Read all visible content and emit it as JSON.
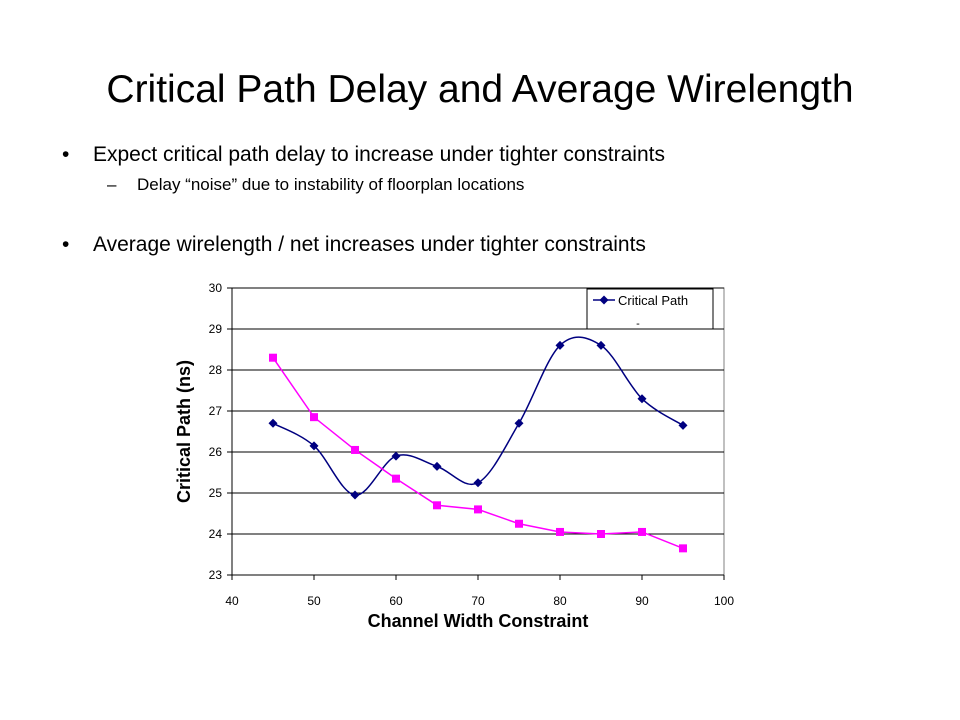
{
  "slide": {
    "title": "Critical Path Delay and Average Wirelength",
    "bullets": [
      {
        "text": "Expect critical path delay to increase under tighter constraints",
        "sub": "Delay “noise” due to instability of floorplan locations"
      },
      {
        "text": "Average wirelength / net increases under tighter constraints"
      }
    ],
    "bullet_symbol": "•",
    "dash_symbol": "–"
  },
  "chart_data": {
    "type": "line",
    "xlabel": "Channel Width Constraint",
    "ylabel": "Critical Path (ns)",
    "xlim": [
      40,
      100
    ],
    "ylim": [
      23,
      30
    ],
    "x_ticks": [
      40,
      50,
      60,
      70,
      80,
      90,
      100
    ],
    "y_ticks": [
      23,
      24,
      25,
      26,
      27,
      28,
      29,
      30
    ],
    "grid": "horizontal",
    "legend": {
      "placement": "top-right",
      "extra_mark": "-"
    },
    "x": [
      45,
      50,
      55,
      60,
      65,
      70,
      75,
      80,
      85,
      90,
      95
    ],
    "series": [
      {
        "name": "Critical Path",
        "color": "#000080",
        "marker": "diamond",
        "smooth": true,
        "in_legend": true,
        "values": [
          26.7,
          26.15,
          24.95,
          25.9,
          25.65,
          25.25,
          26.7,
          28.6,
          28.6,
          27.3,
          26.65
        ]
      },
      {
        "color": "#ff00ff",
        "marker": "square",
        "smooth": false,
        "in_legend": false,
        "values": [
          28.3,
          26.85,
          26.05,
          25.35,
          24.7,
          24.6,
          24.25,
          24.05,
          24.0,
          24.05,
          23.65
        ]
      }
    ]
  }
}
